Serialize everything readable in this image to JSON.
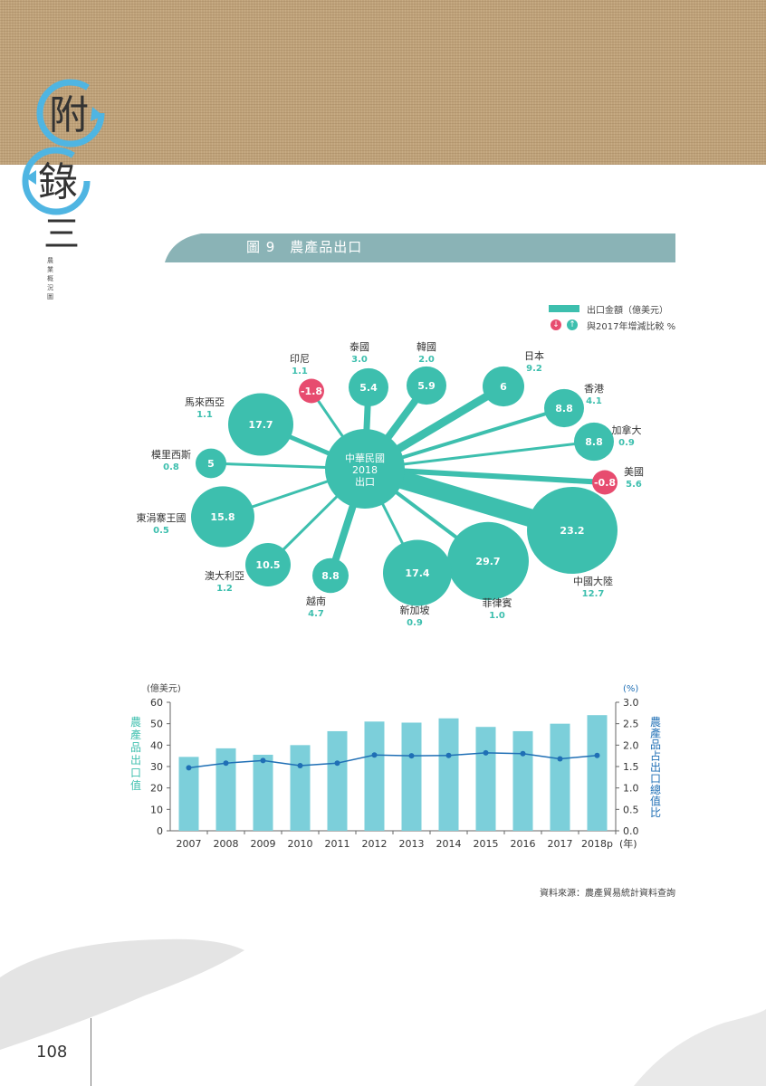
{
  "appendix": {
    "char1": "附",
    "char2": "錄",
    "char3": "三",
    "subtitle": "農業概況圖"
  },
  "figure": {
    "title": "圖 9　農產品出口"
  },
  "legend": {
    "amount_label": "出口金額（億美元）",
    "change_label": "與2017年增減比較 %",
    "down_icon": "down-arrow-icon",
    "up_icon": "up-arrow-icon"
  },
  "source": "資料來源：農產貿易統計資料查詢",
  "page_number": "108",
  "colors": {
    "teal": "#3dbfae",
    "pink": "#e74c6f",
    "bar": "#7ccfda",
    "line": "#1f6fb5",
    "banner": "#8ab3b6",
    "texture": "#bfa27a"
  },
  "chart_data": [
    {
      "type": "bubble",
      "title": "圖 9　農產品出口",
      "center": {
        "label1": "中華民國",
        "label2": "2018",
        "label3": "出口"
      },
      "series": [
        {
          "name": "泰國",
          "value": 5.4,
          "change": "3.0"
        },
        {
          "name": "韓國",
          "value": 5.9,
          "change": "2.0"
        },
        {
          "name": "日本",
          "value": 6.0,
          "change": "9.2"
        },
        {
          "name": "香港",
          "value": 8.8,
          "change": "4.1"
        },
        {
          "name": "加拿大",
          "value": 8.8,
          "change": "0.9"
        },
        {
          "name": "美國",
          "value": -0.8,
          "change": "5.6"
        },
        {
          "name": "中國大陸",
          "value": 23.2,
          "change": "12.7"
        },
        {
          "name": "菲律賓",
          "value": 29.7,
          "change": "1.0"
        },
        {
          "name": "新加坡",
          "value": 17.4,
          "change": "0.9"
        },
        {
          "name": "越南",
          "value": 8.8,
          "change": "4.7"
        },
        {
          "name": "澳大利亞",
          "value": 10.5,
          "change": "1.2"
        },
        {
          "name": "東涓寨王國",
          "value": 15.8,
          "change": "0.5"
        },
        {
          "name": "模里西斯",
          "value": 5.0,
          "change": "0.8"
        },
        {
          "name": "馬來西亞",
          "value": 17.7,
          "change": "1.1"
        },
        {
          "name": "印尼",
          "value": -1.8,
          "change": "1.1"
        }
      ]
    },
    {
      "type": "bar",
      "categories": [
        "2007",
        "2008",
        "2009",
        "2010",
        "2011",
        "2012",
        "2013",
        "2014",
        "2015",
        "2016",
        "2017",
        "2018p"
      ],
      "series": [
        {
          "name": "農產品出口值",
          "values": [
            34.5,
            38.5,
            35.5,
            40,
            46.5,
            51,
            50.5,
            52.5,
            48.5,
            46.5,
            50,
            54
          ]
        },
        {
          "name": "農產品占出口總值比",
          "values": [
            1.47,
            1.58,
            1.64,
            1.52,
            1.58,
            1.77,
            1.75,
            1.76,
            1.82,
            1.8,
            1.68,
            1.76
          ]
        }
      ],
      "ylim": [
        0,
        60
      ],
      "y2lim": [
        0,
        3.0
      ],
      "yticks": [
        "0",
        "10",
        "20",
        "30",
        "40",
        "50",
        "60"
      ],
      "y2ticks": [
        "0.0",
        "0.5",
        "1.0",
        "1.5",
        "2.0",
        "2.5",
        "3.0"
      ],
      "yunit": "(億美元)",
      "y2unit": "(%)",
      "ylabel": "農產品出口值",
      "y2label": "農產品占出口總值比",
      "xunit": "(年)"
    }
  ]
}
